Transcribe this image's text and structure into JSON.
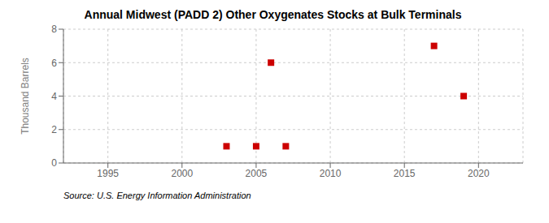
{
  "chart_data": {
    "type": "scatter",
    "title": "Annual Midwest (PADD 2) Other Oxygenates Stocks at Bulk Terminals",
    "ylabel": "Thousand Barrels",
    "annotation": "Source: U.S. Energy Information Administration",
    "x": [
      2003,
      2005,
      2006,
      2007,
      2017,
      2019
    ],
    "values": [
      1,
      1,
      6,
      1,
      7,
      4
    ],
    "color": "#cc0000",
    "marker": "square",
    "xlim": [
      1992,
      2023
    ],
    "xticks": [
      1995,
      2000,
      2005,
      2010,
      2015,
      2020
    ],
    "ylim": [
      0,
      8
    ],
    "yticks": [
      0,
      2,
      4,
      6,
      8
    ],
    "grid": true
  }
}
